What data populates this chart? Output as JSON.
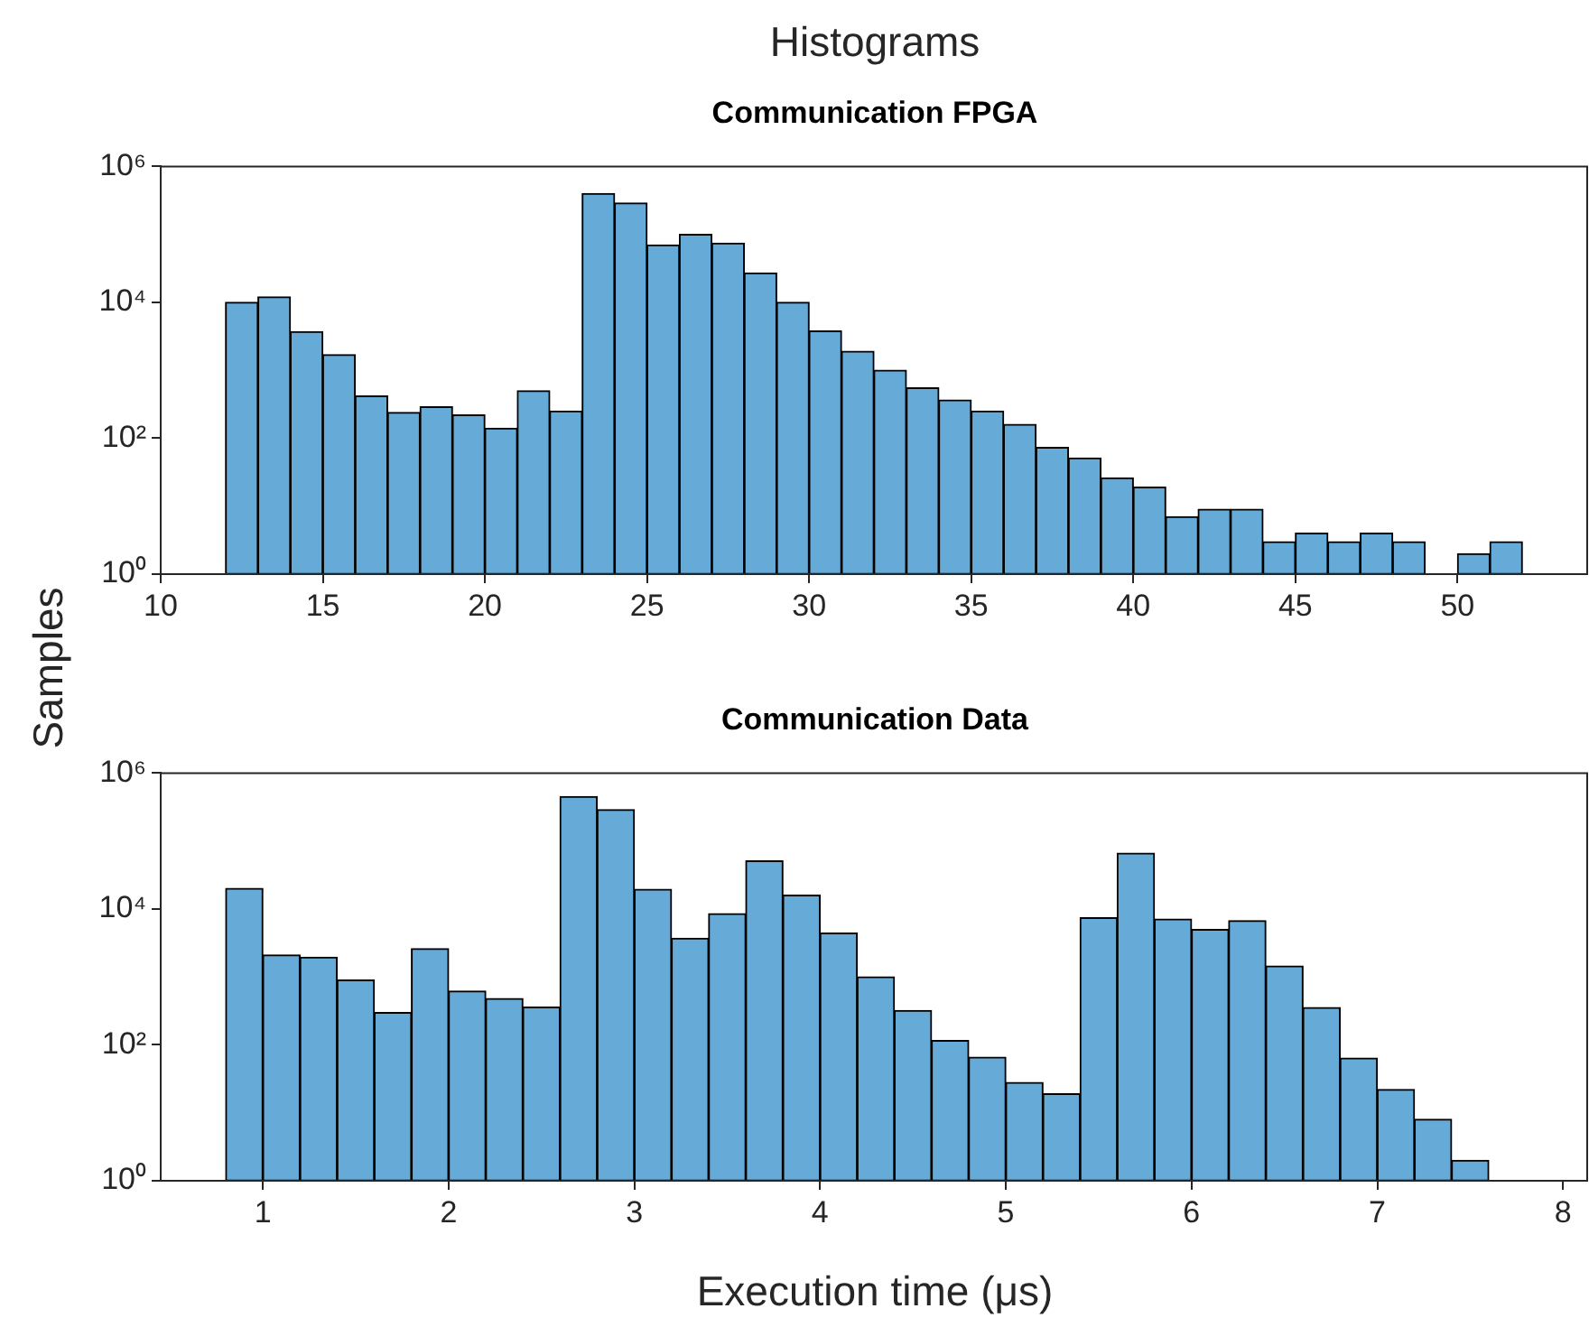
{
  "chart_data": [
    {
      "type": "histogram",
      "title": "Histograms",
      "subtitle": "Communication FPGA",
      "ylabel": "Samples",
      "color": "#66aad7",
      "log": true,
      "bins": [
        12,
        13,
        14,
        15,
        16,
        17,
        18,
        19,
        20,
        21,
        22,
        23,
        24,
        25,
        26,
        27,
        28,
        29,
        30,
        31,
        32,
        33,
        34,
        35,
        36,
        37,
        38,
        39,
        40,
        41,
        42,
        43,
        44,
        45,
        46,
        47,
        48,
        49,
        50,
        51,
        52
      ],
      "values": [
        10000,
        12000,
        3700,
        1700,
        420,
        240,
        290,
        220,
        140,
        500,
        250,
        400000,
        290000,
        70000,
        100000,
        74000,
        27000,
        10000,
        3800,
        1900,
        1000,
        550,
        365,
        250,
        160,
        73,
        51,
        26,
        19,
        7,
        9,
        9,
        3,
        4,
        3,
        4,
        3,
        null,
        2,
        3
      ],
      "xlim": [
        10,
        54
      ],
      "xticks": [
        10,
        15,
        20,
        25,
        30,
        35,
        40,
        45,
        50
      ],
      "ylim": [
        1,
        1000000
      ],
      "yticks": [
        {
          "value": 1,
          "label": "10⁰"
        },
        {
          "value": 100,
          "label": "10²"
        },
        {
          "value": 10000,
          "label": "10⁴"
        },
        {
          "value": 1000000,
          "label": "10⁶"
        }
      ]
    },
    {
      "type": "histogram",
      "title": "Communication Data",
      "xlabel": "Execution time (μs)",
      "color": "#66aad7",
      "log": true,
      "bins": [
        0.8,
        1,
        1.2,
        1.4,
        1.6,
        1.8,
        2,
        2.2,
        2.4,
        2.6,
        2.8,
        3,
        3.2,
        3.4,
        3.6,
        3.8,
        4,
        4.2,
        4.4,
        4.6,
        4.8,
        5,
        5.2,
        5.4,
        5.6,
        5.8,
        6,
        6.2,
        6.4,
        6.6,
        6.8,
        7,
        7.2,
        7.4,
        7.6
      ],
      "values": [
        20000,
        2100,
        1950,
        900,
        300,
        2600,
        620,
        480,
        360,
        450000,
        290000,
        19500,
        3700,
        8500,
        51000,
        16000,
        4400,
        1000,
        320,
        116,
        66,
        28,
        19,
        7400,
        66000,
        7100,
        5000,
        6700,
        1440,
        355,
        64,
        22,
        8,
        2
      ],
      "xlim": [
        0.45,
        8.13
      ],
      "xticks": [
        1,
        2,
        3,
        4,
        5,
        6,
        7,
        8
      ],
      "ylim": [
        1,
        1000000
      ],
      "yticks": [
        {
          "value": 1,
          "label": "10⁰"
        },
        {
          "value": 100,
          "label": "10²"
        },
        {
          "value": 10000,
          "label": "10⁴"
        },
        {
          "value": 1000000,
          "label": "10⁶"
        }
      ]
    }
  ]
}
